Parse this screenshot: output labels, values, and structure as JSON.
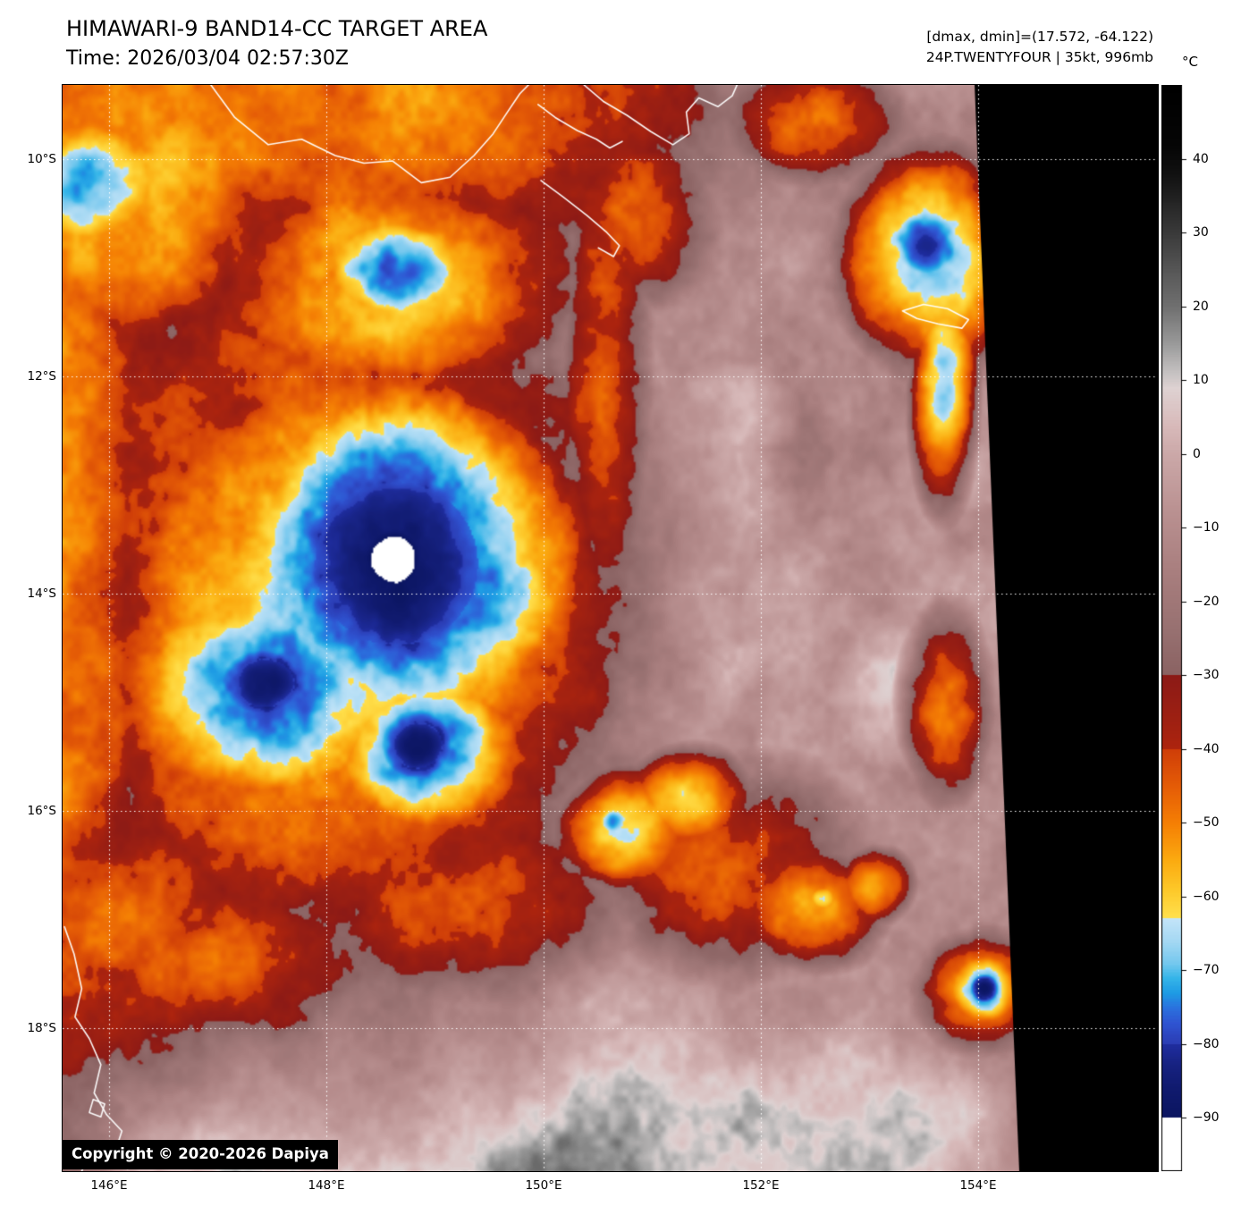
{
  "header": {
    "title": "HIMAWARI-9 BAND14-CC TARGET AREA",
    "time_label": "Time: 2026/03/04 02:57:30Z",
    "stats_line": "[dmax, dmin]=(17.572, -64.122)",
    "storm_line": "24P.TWENTYFOUR | 35kt, 996mb"
  },
  "map": {
    "lat_tick_labels": [
      "10°S",
      "12°S",
      "14°S",
      "16°S",
      "18°S"
    ],
    "lon_tick_labels": [
      "146°E",
      "148°E",
      "150°E",
      "152°E",
      "154°E"
    ],
    "copyright": "Copyright © 2020-2026 Dapiya"
  },
  "colorbar": {
    "unit": "°C",
    "tick_labels": [
      "40",
      "30",
      "20",
      "10",
      "0",
      "−10",
      "−20",
      "−30",
      "−40",
      "−50",
      "−60",
      "−70",
      "−80",
      "−90"
    ],
    "tick_values": [
      40,
      30,
      20,
      10,
      0,
      -10,
      -20,
      -30,
      -40,
      -50,
      -60,
      -70,
      -80,
      -90
    ]
  },
  "imagery": {
    "background": "#000000",
    "grid_color": "#ffffff",
    "coast_color": "#ffffff",
    "palette": [
      [
        50,
        "#000000"
      ],
      [
        42,
        "#050505"
      ],
      [
        38,
        "#111111"
      ],
      [
        30,
        "#3a3a3a"
      ],
      [
        24,
        "#5c5c5c"
      ],
      [
        20,
        "#707070"
      ],
      [
        15,
        "#9a9a9a"
      ],
      [
        11,
        "#c6c2c2"
      ],
      [
        9,
        "#ded2d2"
      ],
      [
        4,
        "#d8baba"
      ],
      [
        0,
        "#cba8a8"
      ],
      [
        -8,
        "#b99090"
      ],
      [
        -16,
        "#a87e7e"
      ],
      [
        -24,
        "#977070"
      ],
      [
        -29.9,
        "#8a6262"
      ],
      [
        -30,
        "#8c1a16"
      ],
      [
        -36,
        "#9e2012"
      ],
      [
        -39.9,
        "#ad240e"
      ],
      [
        -40,
        "#cf3e08"
      ],
      [
        -45,
        "#e55c06"
      ],
      [
        -50,
        "#f57f04"
      ],
      [
        -55,
        "#fbaa10"
      ],
      [
        -59,
        "#fdc829"
      ],
      [
        -62.9,
        "#ffe14e"
      ],
      [
        -63,
        "#c2e4f8"
      ],
      [
        -66,
        "#a5d8f3"
      ],
      [
        -69,
        "#74c8ee"
      ],
      [
        -71,
        "#35b5e9"
      ],
      [
        -73,
        "#1e9be4"
      ],
      [
        -75,
        "#2a72de"
      ],
      [
        -77,
        "#2f55d2"
      ],
      [
        -79.9,
        "#2b3cb4"
      ],
      [
        -80,
        "#1f2d9e"
      ],
      [
        -83,
        "#16217f"
      ],
      [
        -86,
        "#101a6e"
      ],
      [
        -89.9,
        "#0b1560"
      ],
      [
        -90,
        "#ffffff"
      ],
      [
        -110,
        "#ffffff"
      ]
    ],
    "cold_cells": [
      [
        0.345,
        0.435,
        0.052,
        0.046,
        -98
      ],
      [
        0.348,
        0.44,
        0.17,
        0.15,
        -88
      ],
      [
        0.3,
        0.47,
        0.26,
        0.24,
        -68
      ],
      [
        0.285,
        0.5,
        0.33,
        0.36,
        -56
      ],
      [
        0.27,
        0.46,
        0.4,
        0.47,
        -48
      ],
      [
        0.21,
        0.55,
        0.07,
        0.05,
        -86
      ],
      [
        0.225,
        0.555,
        0.16,
        0.11,
        -76
      ],
      [
        0.37,
        0.607,
        0.055,
        0.045,
        -87
      ],
      [
        0.375,
        0.61,
        0.11,
        0.08,
        -74
      ],
      [
        0.345,
        0.17,
        0.09,
        0.055,
        -76
      ],
      [
        0.34,
        0.18,
        0.22,
        0.12,
        -60
      ],
      [
        0.03,
        0.09,
        0.09,
        0.07,
        -74
      ],
      [
        0.06,
        0.1,
        0.22,
        0.16,
        -58
      ],
      [
        0.25,
        0.02,
        0.55,
        0.2,
        -50
      ],
      [
        -0.02,
        0.45,
        0.14,
        0.65,
        -52
      ],
      [
        0.05,
        0.78,
        0.22,
        0.18,
        -46
      ],
      [
        0.902,
        0.147,
        0.045,
        0.042,
        -82
      ],
      [
        0.905,
        0.16,
        0.09,
        0.1,
        -68
      ],
      [
        0.92,
        0.27,
        0.035,
        0.12,
        -64
      ],
      [
        0.963,
        0.831,
        0.02,
        0.017,
        -88
      ],
      [
        0.963,
        0.832,
        0.042,
        0.036,
        -70
      ],
      [
        0.962,
        0.833,
        0.075,
        0.062,
        -52
      ],
      [
        0.655,
        0.657,
        0.075,
        0.05,
        -58
      ],
      [
        0.575,
        0.677,
        0.022,
        0.018,
        -69
      ],
      [
        0.585,
        0.685,
        0.08,
        0.06,
        -59
      ],
      [
        0.78,
        0.754,
        0.085,
        0.06,
        -58
      ],
      [
        0.793,
        0.748,
        0.02,
        0.016,
        -68
      ],
      [
        0.845,
        0.737,
        0.045,
        0.038,
        -58
      ],
      [
        0.7,
        0.72,
        0.18,
        0.12,
        -44
      ],
      [
        0.18,
        0.8,
        0.2,
        0.1,
        -45
      ],
      [
        0.4,
        0.75,
        0.25,
        0.12,
        -42
      ],
      [
        0.565,
        0.25,
        0.06,
        0.3,
        -44
      ],
      [
        0.6,
        0.12,
        0.1,
        0.1,
        -46
      ],
      [
        0.52,
        0.56,
        0.1,
        0.08,
        -38
      ],
      [
        0.925,
        0.57,
        0.05,
        0.1,
        -50
      ],
      [
        0.78,
        0.03,
        0.12,
        0.07,
        -46
      ]
    ],
    "warm_cells": [
      [
        0.48,
        1.04,
        0.62,
        0.26,
        17
      ],
      [
        0.4,
        0.99,
        0.3,
        0.14,
        21
      ],
      [
        0.78,
        0.975,
        0.3,
        0.15,
        13
      ],
      [
        0.655,
        0.375,
        0.14,
        0.12,
        9
      ],
      [
        0.7,
        0.3,
        0.09,
        0.07,
        8
      ],
      [
        0.6,
        0.5,
        0.09,
        0.07,
        6
      ],
      [
        0.88,
        0.56,
        0.12,
        0.1,
        9
      ],
      [
        0.92,
        0.35,
        0.1,
        0.12,
        2
      ],
      [
        0.57,
        0.42,
        0.06,
        0.05,
        6
      ],
      [
        0.66,
        0.56,
        0.08,
        0.06,
        7
      ]
    ],
    "coastlines": [
      [
        [
          0.155,
          0
        ],
        [
          0.18,
          0.03
        ],
        [
          0.215,
          0.055
        ],
        [
          0.25,
          0.05
        ],
        [
          0.285,
          0.065
        ],
        [
          0.315,
          0.072
        ],
        [
          0.345,
          0.07
        ],
        [
          0.375,
          0.09
        ],
        [
          0.405,
          0.085
        ],
        [
          0.43,
          0.065
        ],
        [
          0.45,
          0.045
        ],
        [
          0.465,
          0.025
        ],
        [
          0.478,
          0.008
        ],
        [
          0.487,
          0.0
        ]
      ],
      [
        [
          0.497,
          0.018
        ],
        [
          0.515,
          0.03
        ],
        [
          0.538,
          0.042
        ],
        [
          0.558,
          0.05
        ],
        [
          0.572,
          0.058
        ],
        [
          0.585,
          0.052
        ]
      ],
      [
        [
          0.545,
          0.0
        ],
        [
          0.565,
          0.015
        ],
        [
          0.59,
          0.028
        ],
        [
          0.615,
          0.043
        ],
        [
          0.638,
          0.055
        ],
        [
          0.655,
          0.045
        ],
        [
          0.652,
          0.025
        ],
        [
          0.665,
          0.012
        ],
        [
          0.685,
          0.02
        ],
        [
          0.7,
          0.01
        ],
        [
          0.705,
          0.0
        ]
      ],
      [
        [
          0.5,
          0.088
        ],
        [
          0.523,
          0.103
        ],
        [
          0.548,
          0.12
        ],
        [
          0.568,
          0.135
        ],
        [
          0.582,
          0.148
        ],
        [
          0.576,
          0.158
        ],
        [
          0.56,
          0.15
        ]
      ],
      [
        [
          0.878,
          0.208
        ],
        [
          0.9,
          0.202
        ],
        [
          0.925,
          0.206
        ],
        [
          0.947,
          0.216
        ],
        [
          0.94,
          0.224
        ],
        [
          0.915,
          0.22
        ],
        [
          0.893,
          0.215
        ],
        [
          0.878,
          0.208
        ]
      ],
      [
        [
          0.002,
          0.775
        ],
        [
          0.012,
          0.8
        ],
        [
          0.02,
          0.832
        ],
        [
          0.013,
          0.858
        ],
        [
          0.028,
          0.878
        ],
        [
          0.04,
          0.902
        ],
        [
          0.033,
          0.928
        ],
        [
          0.046,
          0.948
        ],
        [
          0.062,
          0.963
        ],
        [
          0.055,
          0.982
        ],
        [
          0.068,
          0.998
        ]
      ],
      [
        [
          0.032,
          0.934
        ],
        [
          0.044,
          0.938
        ],
        [
          0.04,
          0.95
        ],
        [
          0.028,
          0.946
        ],
        [
          0.032,
          0.934
        ]
      ],
      [
        [
          0.012,
          0.988
        ],
        [
          0.024,
          0.992
        ],
        [
          0.02,
          1.0
        ]
      ]
    ]
  }
}
